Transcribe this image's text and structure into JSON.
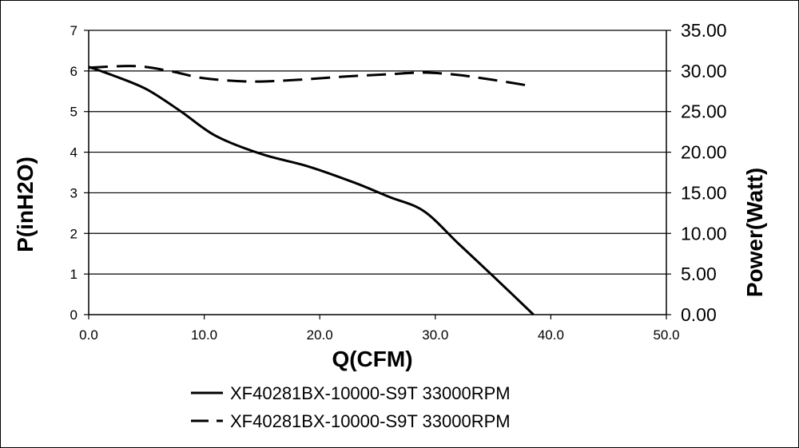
{
  "chart_data": {
    "type": "line",
    "xlabel": "Q(CFM)",
    "ylabel_left": "P(inH2O)",
    "ylabel_right": "Power(Watt)",
    "xlim": [
      0,
      50
    ],
    "ylim_left": [
      0,
      7
    ],
    "ylim_right": [
      0,
      35
    ],
    "x_ticks": [
      "0.0",
      "10.0",
      "20.0",
      "30.0",
      "40.0",
      "50.0"
    ],
    "y_left_ticks": [
      "0",
      "1",
      "2",
      "3",
      "4",
      "5",
      "6",
      "7"
    ],
    "y_right_ticks": [
      "0.00",
      "5.00",
      "10.00",
      "15.00",
      "20.00",
      "25.00",
      "30.00",
      "35.00"
    ],
    "grid": "horizontal",
    "legend_position": "bottom-center",
    "colors": {
      "line": "#000000",
      "grid": "#000000",
      "background": "#ffffff"
    },
    "series": [
      {
        "name": "XF40281BX-10000-S9T 33000RPM",
        "axis": "left",
        "style": "solid",
        "x": [
          0,
          2,
          5,
          8,
          11,
          15,
          19,
          23,
          26,
          29,
          32,
          35,
          38.5
        ],
        "y": [
          6.1,
          5.9,
          5.55,
          5.0,
          4.4,
          3.95,
          3.65,
          3.25,
          2.9,
          2.55,
          1.75,
          0.95,
          0
        ]
      },
      {
        "name": "XF40281BX-10000-S9T 33000RPM",
        "axis": "right",
        "style": "dashed",
        "x": [
          0,
          4,
          7,
          10,
          14,
          18,
          22,
          26,
          29,
          32,
          35,
          38.5
        ],
        "y": [
          30.4,
          30.6,
          30.0,
          29.1,
          28.7,
          28.9,
          29.3,
          29.6,
          29.8,
          29.5,
          28.9,
          28.1
        ]
      }
    ]
  }
}
